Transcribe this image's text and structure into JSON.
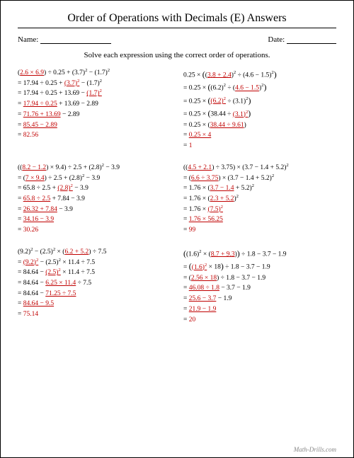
{
  "title": "Order of Operations with Decimals (E) Answers",
  "name_label": "Name:",
  "date_label": "Date:",
  "instructions": "Solve each expression using the correct order of operations.",
  "footer": "Math-Drills.com",
  "colors": {
    "highlight": "#c00000",
    "text": "#000000"
  },
  "problems": [
    {
      "steps": [
        "(<span class='u'>2.6 × 6.9</span>) ÷ 0.25 + (3.7)<sup>2</sup> − (1.7)<sup>2</sup>",
        "= 17.94 ÷ 0.25 + <span class='u'>(3.7)<sup>2</sup></span> − (1.7)<sup>2</sup>",
        "= 17.94 ÷ 0.25 + 13.69 − <span class='u'>(1.7)<sup>2</sup></span>",
        "= <span class='u'>17.94 ÷ 0.25</span> + 13.69 − 2.89",
        "= <span class='u'>71.76 + 13.69</span> − 2.89",
        "= <span class='u'>85.45 − 2.89</span>",
        "= <span class='r'>82.56</span>"
      ]
    },
    {
      "steps": [
        "0.25 × <span class='big'>(</span>(<span class='u'>3.8 + 2.4</span>)<sup>2</sup> ÷ (4.6 − 1.5)<sup>2</sup><span class='big'>)</span>",
        "= 0.25 × <span class='big'>(</span>(6.2)<sup>2</sup> ÷ (<span class='u'>4.6 − 1.5</span>)<sup>2</sup><span class='big'>)</span>",
        "= 0.25 × <span class='big'>(</span><span class='u'>(6.2)<sup>2</sup></span> ÷ (3.1)<sup>2</sup><span class='big'>)</span>",
        "= 0.25 × <span class='big'>(</span>38.44 ÷ <span class='u'>(3.1)<sup>2</sup></span><span class='big'>)</span>",
        "= 0.25 × (<span class='u'>38.44 ÷ 9.61</span>)",
        "= <span class='u'>0.25 × 4</span>",
        "= <span class='r'>1</span>"
      ]
    },
    {
      "steps": [
        "((<span class='u'>8.2 − 1.2</span>) × 9.4) ÷ 2.5 + (2.8)<sup>2</sup> − 3.9",
        "= (<span class='u'>7 × 9.4</span>) ÷ 2.5 + (2.8)<sup>2</sup> − 3.9",
        "= 65.8 ÷ 2.5 + <span class='u'>(2.8)<sup>2</sup></span> − 3.9",
        "= <span class='u'>65.8 ÷ 2.5</span> + 7.84 − 3.9",
        "= <span class='u'>26.32 + 7.84</span> − 3.9",
        "= <span class='u'>34.16 − 3.9</span>",
        "= <span class='r'>30.26</span>"
      ]
    },
    {
      "steps": [
        "((<span class='u'>4.5 + 2.1</span>) ÷ 3.75) × (3.7 − 1.4 + 5.2)<sup>2</sup>",
        "= (<span class='u'>6.6 ÷ 3.75</span>) × (3.7 − 1.4 + 5.2)<sup>2</sup>",
        "= 1.76 × (<span class='u'>3.7 − 1.4</span> + 5.2)<sup>2</sup>",
        "= 1.76 × (<span class='u'>2.3 + 5.2</span>)<sup>2</sup>",
        "= 1.76 × <span class='u'>(7.5)<sup>2</sup></span>",
        "= <span class='u'>1.76 × 56.25</span>",
        "= <span class='r'>99</span>"
      ]
    },
    {
      "steps": [
        "(9.2)<sup>2</sup> − (2.5)<sup>2</sup> × (<span class='u'>6.2 + 5.2</span>) ÷ 7.5",
        "= <span class='u'>(9.2)<sup>2</sup></span> − (2.5)<sup>2</sup> × 11.4 ÷ 7.5",
        "= 84.64 − <span class='u'>(2.5)<sup>2</sup></span> × 11.4 ÷ 7.5",
        "= 84.64 − <span class='u'>6.25 × 11.4</span> ÷ 7.5",
        "= 84.64 − <span class='u'>71.25 ÷ 7.5</span>",
        "= <span class='u'>84.64 − 9.5</span>",
        "= <span class='r'>75.14</span>"
      ]
    },
    {
      "steps": [
        "<span class='big'>(</span>(1.6)<sup>2</sup> × (<span class='u'>8.7 + 9.3</span>)<span class='big'>)</span> ÷ 1.8 − 3.7 − 1.9",
        "= <span class='big'>(</span><span class='u'>(1.6)<sup>2</sup></span> × 18<span class='big'>)</span> ÷ 1.8 − 3.7 − 1.9",
        "= (<span class='u'>2.56 × 18</span>) ÷ 1.8 − 3.7 − 1.9",
        "= <span class='u'>46.08 ÷ 1.8</span> − 3.7 − 1.9",
        "= <span class='u'>25.6 − 3.7</span> − 1.9",
        "= <span class='u'>21.9 − 1.9</span>",
        "= <span class='r'>20</span>"
      ]
    }
  ]
}
